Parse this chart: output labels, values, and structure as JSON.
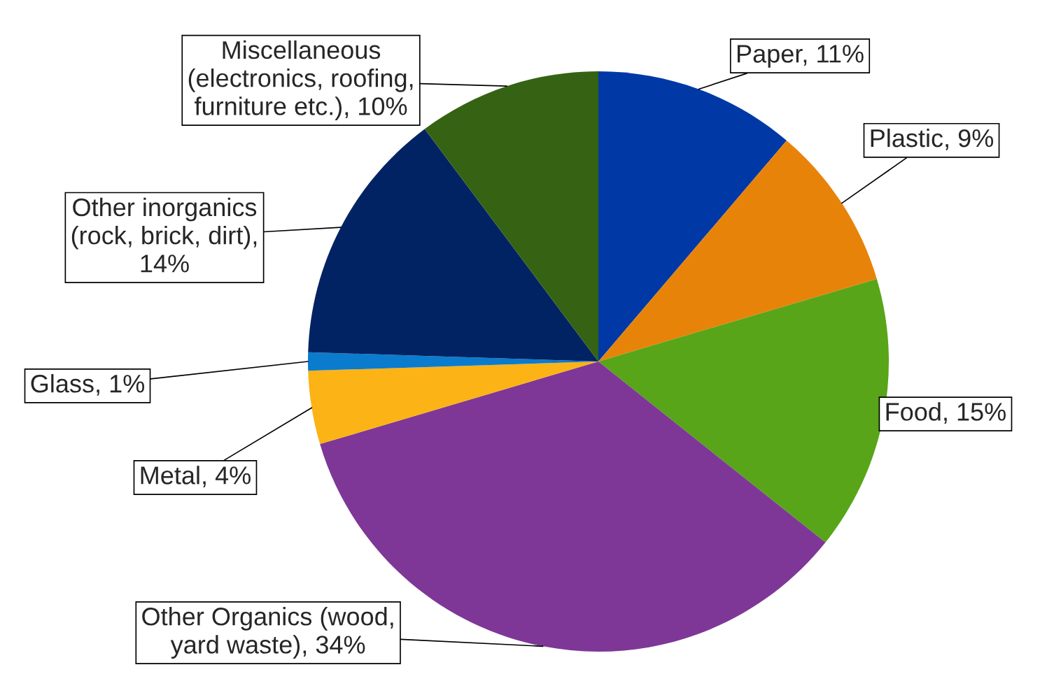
{
  "chart_data": {
    "type": "pie",
    "categories": [
      "Paper, 11%",
      "Plastic, 9%",
      "Food, 15%",
      "Other Organics (wood,\nyard waste), 34%",
      "Metal, 4%",
      "Glass, 1%",
      "Other inorganics\n(rock, brick, dirt),\n14%",
      "Miscellaneous\n(electronics, roofing,\nfurniture etc.), 10%"
    ],
    "values": [
      11,
      9,
      15,
      34,
      4,
      1,
      14,
      10
    ],
    "colors": [
      "#0039a6",
      "#e8830a",
      "#58a519",
      "#7e3797",
      "#fbb315",
      "#0b7bce",
      "#022363",
      "#356313"
    ],
    "legend": false
  }
}
